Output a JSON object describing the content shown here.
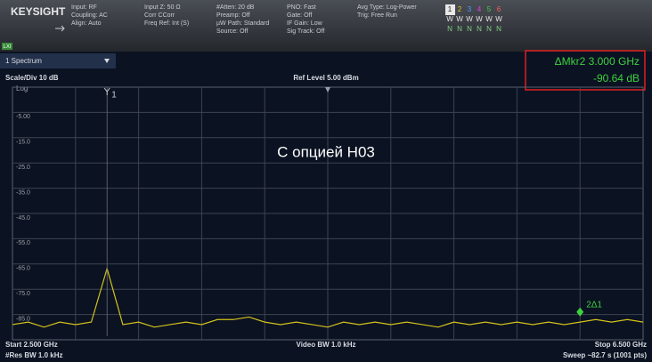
{
  "header": {
    "brand": "KEYSIGHT",
    "lxi": "LXI",
    "col1": [
      "Input: RF",
      "Coupling: AC",
      "Align: Auto"
    ],
    "col2": [
      "Input Z: 50 Ω",
      "Corr CCorr",
      "Freq Ref: Int (S)"
    ],
    "col3": [
      "#Atten: 20 dB",
      "Preamp: Off",
      "µW Path: Standard",
      "Source: Off"
    ],
    "col4": [
      "PNO: Fast",
      "Gate: Off",
      "IF Gain: Low",
      "Sig Track: Off"
    ],
    "col5": [
      "Avg Type: Log-Power",
      "Trig: Free Run"
    ],
    "trace_numbers": [
      "1",
      "2",
      "3",
      "4",
      "5",
      "6"
    ],
    "trace_types": [
      "W",
      "W",
      "W",
      "W",
      "W",
      "W"
    ],
    "trace_dets": [
      "N",
      "N",
      "N",
      "N",
      "N",
      "N"
    ]
  },
  "window": {
    "title": "1 Spectrum",
    "scale": "Scale/Div 10 dB",
    "log": "Log",
    "ref_level": "Ref Level 5.00 dBm",
    "marker_readout": [
      "ΔMkr2  3.000 GHz",
      "-90.64 dB"
    ],
    "overlay": "С опцией H03",
    "footer": {
      "start": "Start 2.500 GHz",
      "res_bw": "#Res BW 1.0 kHz",
      "video_bw": "Video BW 1.0 kHz",
      "stop": "Stop 6.500 GHz",
      "sweep": "Sweep ~82.7 s (1001 pts)"
    }
  },
  "chart_data": {
    "type": "line",
    "x": [
      2.5,
      2.6,
      2.7,
      2.8,
      2.9,
      3.0,
      3.1,
      3.2,
      3.3,
      3.4,
      3.5,
      3.6,
      3.7,
      3.8,
      3.9,
      4.0,
      4.1,
      4.2,
      4.3,
      4.4,
      4.5,
      4.6,
      4.7,
      4.8,
      4.9,
      5.0,
      5.1,
      5.2,
      5.3,
      5.4,
      5.5,
      5.6,
      5.7,
      5.8,
      5.9,
      6.0,
      6.1,
      6.2,
      6.3,
      6.4,
      6.5
    ],
    "series": [
      {
        "color": "#d4c21c",
        "values": [
          -89,
          -88,
          -90,
          -88,
          -89,
          -88,
          -66.8,
          -89,
          -88,
          -90,
          -89,
          -88,
          -89,
          -87,
          -87,
          -86,
          -88,
          -89,
          -88,
          -89,
          -90,
          -88,
          -89,
          -88,
          -89,
          -88,
          -89,
          -90,
          -88,
          -89,
          -88,
          -89,
          -88,
          -89,
          -88,
          -89,
          -88,
          -87,
          -88,
          -87,
          -88
        ]
      }
    ],
    "xlim": [
      2.5,
      6.5
    ],
    "ylim": [
      -95,
      5
    ],
    "xticks": [
      2.9,
      3.3,
      3.7,
      4.1,
      4.5,
      4.9,
      5.3,
      5.7,
      6.1
    ],
    "yticks": [
      {
        "value": -5,
        "label": "-5.00"
      },
      {
        "value": -15,
        "label": "-15.0"
      },
      {
        "value": -25,
        "label": "-25.0"
      },
      {
        "value": -35,
        "label": "-35.0"
      },
      {
        "value": -45,
        "label": "-45.0"
      },
      {
        "value": -55,
        "label": "-55.0"
      },
      {
        "value": -65,
        "label": "-65.0"
      },
      {
        "value": -75,
        "label": "-75.0"
      },
      {
        "value": -85,
        "label": "-85.0"
      }
    ],
    "grid": true,
    "markers": [
      {
        "label": "1",
        "x": 3.1
      },
      {
        "label": "2Δ1",
        "x": 6.1,
        "value": -84
      }
    ]
  }
}
